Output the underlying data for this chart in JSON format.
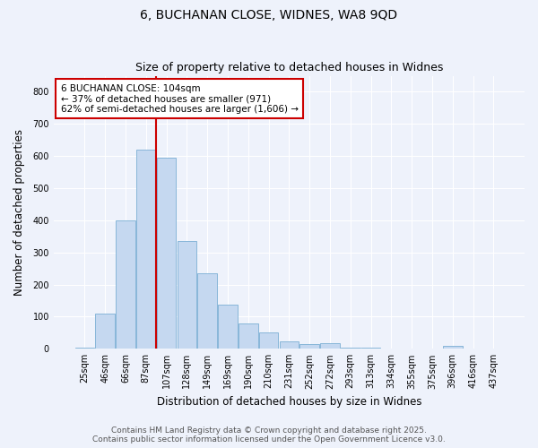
{
  "title_line1": "6, BUCHANAN CLOSE, WIDNES, WA8 9QD",
  "title_line2": "Size of property relative to detached houses in Widnes",
  "xlabel": "Distribution of detached houses by size in Widnes",
  "ylabel": "Number of detached properties",
  "bin_labels": [
    "25sqm",
    "46sqm",
    "66sqm",
    "87sqm",
    "107sqm",
    "128sqm",
    "149sqm",
    "169sqm",
    "190sqm",
    "210sqm",
    "231sqm",
    "252sqm",
    "272sqm",
    "293sqm",
    "313sqm",
    "334sqm",
    "355sqm",
    "375sqm",
    "396sqm",
    "416sqm",
    "437sqm"
  ],
  "bar_heights": [
    5,
    110,
    400,
    620,
    595,
    335,
    235,
    137,
    80,
    50,
    22,
    15,
    17,
    5,
    3,
    0,
    0,
    0,
    8,
    0,
    0
  ],
  "bar_color": "#c5d8f0",
  "bar_edge_color": "#7bafd4",
  "vline_x": 3.5,
  "vline_color": "#cc0000",
  "annotation_text": "6 BUCHANAN CLOSE: 104sqm\n← 37% of detached houses are smaller (971)\n62% of semi-detached houses are larger (1,606) →",
  "annotation_box_color": "#ffffff",
  "annotation_box_edge": "#cc0000",
  "ylim": [
    0,
    850
  ],
  "yticks": [
    0,
    100,
    200,
    300,
    400,
    500,
    600,
    700,
    800
  ],
  "footer_line1": "Contains HM Land Registry data © Crown copyright and database right 2025.",
  "footer_line2": "Contains public sector information licensed under the Open Government Licence v3.0.",
  "bg_color": "#eef2fb",
  "plot_bg_color": "#eef2fb",
  "title_fontsize": 10,
  "subtitle_fontsize": 9,
  "axis_label_fontsize": 8.5,
  "tick_fontsize": 7,
  "footer_fontsize": 6.5,
  "annotation_fontsize": 7.5
}
